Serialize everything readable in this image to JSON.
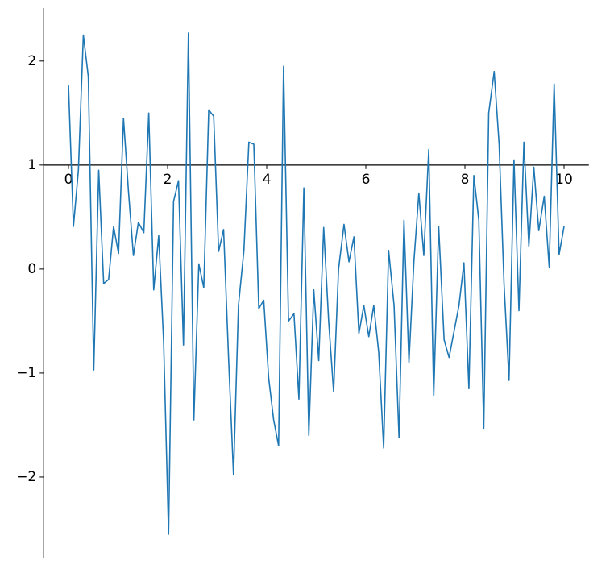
{
  "chart_data": {
    "type": "line",
    "x": [
      0,
      0.1,
      0.2,
      0.3,
      0.4,
      0.51,
      0.61,
      0.71,
      0.81,
      0.91,
      1.01,
      1.11,
      1.21,
      1.31,
      1.41,
      1.52,
      1.62,
      1.72,
      1.82,
      1.92,
      2.02,
      2.12,
      2.22,
      2.32,
      2.42,
      2.53,
      2.63,
      2.73,
      2.83,
      2.93,
      3.03,
      3.13,
      3.23,
      3.33,
      3.43,
      3.54,
      3.64,
      3.74,
      3.84,
      3.94,
      4.04,
      4.14,
      4.24,
      4.34,
      4.44,
      4.55,
      4.65,
      4.75,
      4.85,
      4.95,
      5.05,
      5.15,
      5.25,
      5.35,
      5.45,
      5.56,
      5.66,
      5.76,
      5.86,
      5.96,
      6.06,
      6.16,
      6.26,
      6.36,
      6.46,
      6.57,
      6.67,
      6.77,
      6.87,
      6.97,
      7.07,
      7.17,
      7.27,
      7.37,
      7.47,
      7.58,
      7.68,
      7.78,
      7.88,
      7.98,
      8.08,
      8.18,
      8.28,
      8.38,
      8.48,
      8.59,
      8.69,
      8.79,
      8.89,
      8.99,
      9.09,
      9.19,
      9.29,
      9.39,
      9.49,
      9.6,
      9.7,
      9.8,
      9.9,
      10
    ],
    "series": [
      {
        "color": "#1f77b4",
        "values": [
          1.77,
          0.41,
          0.95,
          2.25,
          1.85,
          -0.97,
          0.95,
          -0.14,
          -0.1,
          0.41,
          0.15,
          1.45,
          0.75,
          0.13,
          0.45,
          0.35,
          1.5,
          -0.2,
          0.32,
          -0.7,
          -2.55,
          0.65,
          0.85,
          -0.73,
          2.27,
          -1.45,
          0.05,
          -0.18,
          1.53,
          1.47,
          0.17,
          0.38,
          -0.85,
          -1.98,
          -0.35,
          0.18,
          1.22,
          1.2,
          -0.38,
          -0.3,
          -1.05,
          -1.45,
          -1.7,
          1.95,
          -0.5,
          -0.43,
          -1.25,
          0.78,
          -1.6,
          -0.2,
          -0.88,
          0.4,
          -0.5,
          -1.18,
          0.0,
          0.43,
          0.07,
          0.31,
          -0.62,
          -0.35,
          -0.65,
          -0.35,
          -0.8,
          -1.72,
          0.18,
          -0.35,
          -1.62,
          0.47,
          -0.9,
          0.07,
          0.73,
          0.13,
          1.15,
          -1.22,
          0.41,
          -0.68,
          -0.85,
          -0.6,
          -0.35,
          0.06,
          -1.15,
          0.9,
          0.47,
          -1.53,
          1.5,
          1.9,
          1.2,
          -0.15,
          -1.07,
          1.05,
          -0.4,
          1.22,
          0.22,
          0.98,
          0.37,
          0.7,
          0.02,
          1.78,
          0.14,
          0.41
        ]
      }
    ],
    "xlim": [
      -0.5,
      10.5
    ],
    "ylim": [
      -2.78,
      2.51
    ],
    "xticks": [
      0,
      2,
      4,
      6,
      8,
      10
    ],
    "yticks": [
      {
        "value": -2,
        "label": "−2"
      },
      {
        "value": -1,
        "label": "−1"
      },
      0,
      1,
      2
    ],
    "xaxis_at": 1
  }
}
